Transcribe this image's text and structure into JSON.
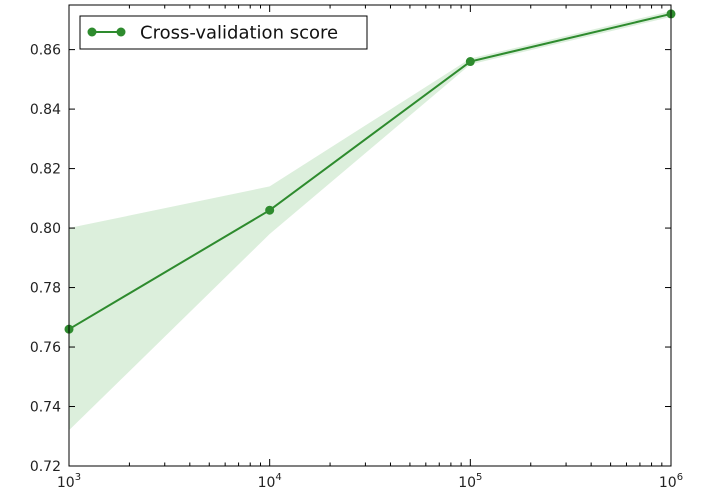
{
  "chart_data": {
    "type": "line",
    "title": "",
    "xlabel": "",
    "ylabel": "",
    "x_scale": "log",
    "xlim": [
      1000,
      1000000
    ],
    "ylim": [
      0.72,
      0.875
    ],
    "grid": false,
    "legend_position": "top-left",
    "x_ticks": [
      {
        "value": 1000,
        "base": "10",
        "exp": "3"
      },
      {
        "value": 10000,
        "base": "10",
        "exp": "4"
      },
      {
        "value": 100000,
        "base": "10",
        "exp": "5"
      },
      {
        "value": 1000000,
        "base": "10",
        "exp": "6"
      }
    ],
    "y_ticks": [
      {
        "value": 0.72,
        "label": "0.72"
      },
      {
        "value": 0.74,
        "label": "0.74"
      },
      {
        "value": 0.76,
        "label": "0.76"
      },
      {
        "value": 0.78,
        "label": "0.78"
      },
      {
        "value": 0.8,
        "label": "0.80"
      },
      {
        "value": 0.82,
        "label": "0.82"
      },
      {
        "value": 0.84,
        "label": "0.84"
      },
      {
        "value": 0.86,
        "label": "0.86"
      }
    ],
    "series": [
      {
        "name": "Cross-validation score",
        "color": "#2e8b2e",
        "band_color": "#dcefdc",
        "x": [
          1000,
          10000,
          100000,
          1000000
        ],
        "y": [
          0.766,
          0.806,
          0.856,
          0.872
        ],
        "y_lower": [
          0.732,
          0.798,
          0.855,
          0.871
        ],
        "y_upper": [
          0.8,
          0.814,
          0.857,
          0.873
        ]
      }
    ]
  }
}
